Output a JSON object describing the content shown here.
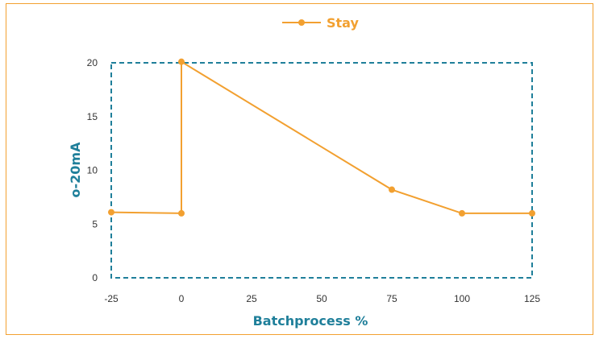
{
  "chart_data": {
    "type": "line",
    "title": "",
    "xlabel": "Batchprocess %",
    "ylabel": "o-20mA",
    "xlim": [
      -25,
      125
    ],
    "ylim": [
      0,
      20
    ],
    "x_ticks": [
      "-25",
      "0",
      "25",
      "50",
      "75",
      "100",
      "125"
    ],
    "x_tick_values": [
      -25,
      0,
      25,
      50,
      75,
      100,
      125
    ],
    "y_ticks": [
      "0",
      "5",
      "10",
      "15",
      "20"
    ],
    "y_tick_values": [
      0,
      5,
      10,
      15,
      20
    ],
    "grid": false,
    "legend_position": "top-center",
    "series": [
      {
        "name": "Stay",
        "color": "#f2a030",
        "points": [
          {
            "x": -25,
            "y": 6.1
          },
          {
            "x": 0,
            "y": 6.0
          },
          {
            "x": 0,
            "y": 20.1
          },
          {
            "x": 75,
            "y": 8.2
          },
          {
            "x": 100,
            "y": 6.0
          },
          {
            "x": 125,
            "y": 6.0
          }
        ]
      }
    ],
    "plot_border_color": "#1f7f9a",
    "axis_title_color": "#1f7f9a",
    "frame_border_color": "#f2a030"
  }
}
